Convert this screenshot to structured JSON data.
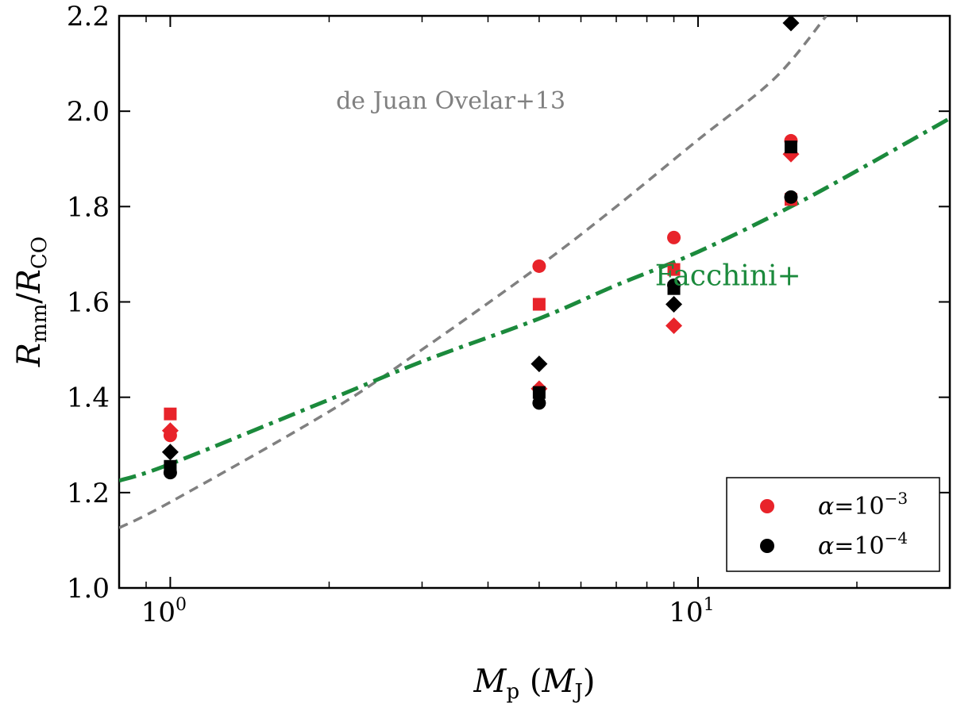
{
  "chart_data": {
    "type": "scatter",
    "title": "",
    "xlabel": {
      "main": "M",
      "sub": "p",
      "paren_main": "M",
      "paren_sub": "J"
    },
    "ylabel": {
      "num": "R",
      "num_sub": "mm",
      "den": "R",
      "den_sub": "CO"
    },
    "xscale": "log",
    "xlim": [
      0.8,
      30
    ],
    "ylim": [
      1.0,
      2.2
    ],
    "yticks": [
      {
        "value": 1.0,
        "label": "1.0"
      },
      {
        "value": 1.2,
        "label": "1.2"
      },
      {
        "value": 1.4,
        "label": "1.4"
      },
      {
        "value": 1.6,
        "label": "1.6"
      },
      {
        "value": 1.8,
        "label": "1.8"
      },
      {
        "value": 2.0,
        "label": "2.0"
      },
      {
        "value": 2.2,
        "label": "2.2"
      }
    ],
    "xticks_major": [
      {
        "value": 1,
        "base": "10",
        "exp": "0"
      },
      {
        "value": 10,
        "base": "10",
        "exp": "1"
      }
    ],
    "xticks_minor": [
      0.8,
      0.9,
      2,
      3,
      4,
      5,
      6,
      7,
      8,
      9,
      20,
      30
    ],
    "series": [
      {
        "name": "alpha=1e-3 circle",
        "color": "#e8232a",
        "marker": "circle",
        "points": [
          {
            "x": 1,
            "y": 1.32
          },
          {
            "x": 5,
            "y": 1.675
          },
          {
            "x": 9,
            "y": 1.735
          },
          {
            "x": 15,
            "y": 1.938
          }
        ]
      },
      {
        "name": "alpha=1e-3 square",
        "color": "#e8232a",
        "marker": "square",
        "points": [
          {
            "x": 1,
            "y": 1.365
          },
          {
            "x": 5,
            "y": 1.595
          },
          {
            "x": 9,
            "y": 1.668
          },
          {
            "x": 15,
            "y": 1.815
          }
        ]
      },
      {
        "name": "alpha=1e-3 diamond",
        "color": "#e8232a",
        "marker": "diamond",
        "points": [
          {
            "x": 1,
            "y": 1.33
          },
          {
            "x": 5,
            "y": 1.418
          },
          {
            "x": 9,
            "y": 1.55
          },
          {
            "x": 15,
            "y": 1.91
          }
        ]
      },
      {
        "name": "alpha=1e-4 circle",
        "color": "#000000",
        "marker": "circle",
        "points": [
          {
            "x": 1,
            "y": 1.242
          },
          {
            "x": 5,
            "y": 1.388
          },
          {
            "x": 9,
            "y": 1.635
          },
          {
            "x": 15,
            "y": 1.82
          }
        ]
      },
      {
        "name": "alpha=1e-4 square",
        "color": "#000000",
        "marker": "square",
        "points": [
          {
            "x": 1,
            "y": 1.255
          },
          {
            "x": 5,
            "y": 1.41
          },
          {
            "x": 9,
            "y": 1.628
          },
          {
            "x": 15,
            "y": 1.925
          }
        ]
      },
      {
        "name": "alpha=1e-4 diamond",
        "color": "#000000",
        "marker": "diamond",
        "points": [
          {
            "x": 1,
            "y": 1.285
          },
          {
            "x": 5,
            "y": 1.47
          },
          {
            "x": 9,
            "y": 1.595
          },
          {
            "x": 15,
            "y": 2.185
          }
        ]
      }
    ],
    "curves": [
      {
        "name": "de Juan Ovelar+13",
        "color": "#808080",
        "style": "dashed",
        "points": [
          {
            "x": 0.8,
            "y": 1.126
          },
          {
            "x": 1,
            "y": 1.18
          },
          {
            "x": 2,
            "y": 1.37
          },
          {
            "x": 3,
            "y": 1.5
          },
          {
            "x": 5,
            "y": 1.675
          },
          {
            "x": 7,
            "y": 1.8
          },
          {
            "x": 10,
            "y": 1.94
          },
          {
            "x": 14,
            "y": 2.07
          },
          {
            "x": 17.5,
            "y": 2.2
          }
        ]
      },
      {
        "name": "Facchini+",
        "color": "#1b8a3c",
        "style": "dashdot",
        "points": [
          {
            "x": 0.8,
            "y": 1.225
          },
          {
            "x": 1,
            "y": 1.26
          },
          {
            "x": 2,
            "y": 1.395
          },
          {
            "x": 3,
            "y": 1.475
          },
          {
            "x": 5,
            "y": 1.565
          },
          {
            "x": 7,
            "y": 1.635
          },
          {
            "x": 10,
            "y": 1.705
          },
          {
            "x": 15,
            "y": 1.8
          },
          {
            "x": 20,
            "y": 1.875
          },
          {
            "x": 30,
            "y": 1.985
          }
        ]
      }
    ],
    "annotations": [
      {
        "text": "de Juan Ovelar+13",
        "color": "#808080",
        "x": 3.4,
        "y": 2.005
      },
      {
        "text": "Facchini+",
        "color": "#1b8a3c",
        "x": 11.4,
        "y": 1.635
      }
    ],
    "legend": {
      "position": "bottom-right",
      "entries": [
        {
          "symbol": "α",
          "op": "=",
          "base": "10",
          "exp": "−3",
          "color": "#e8232a"
        },
        {
          "symbol": "α",
          "op": "=",
          "base": "10",
          "exp": "−4",
          "color": "#000000"
        }
      ]
    }
  }
}
